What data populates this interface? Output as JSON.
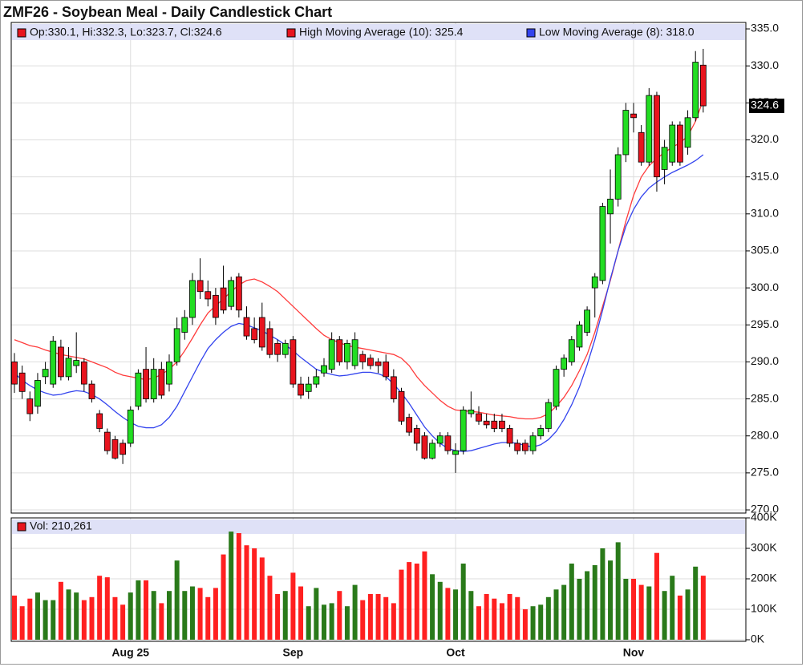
{
  "chart_data": [
    {
      "type": "candlestick",
      "title": "ZMF26 - Soybean Meal - Daily Candlestick Chart",
      "legend_text": "Op:330.1, Hi:332.3, Lo:323.7, Cl:324.6",
      "up_color": "#22dd22",
      "down_color": "#e8141e",
      "legend_color": "#e8141e",
      "open": [
        290,
        288.5,
        285,
        284,
        288,
        287,
        292,
        288,
        289.5,
        290,
        287,
        283,
        280.5,
        279.5,
        279,
        279,
        284,
        289,
        285,
        289,
        287,
        290,
        294,
        296,
        301,
        299.5,
        299,
        300,
        297.5,
        301.5,
        296,
        294.5,
        296,
        294.5,
        292.5,
        291,
        293,
        287,
        286,
        287,
        288.5,
        289,
        293,
        290,
        289.5,
        291,
        290.5,
        290,
        290,
        288,
        286,
        282.5,
        281,
        280,
        277,
        279,
        280,
        277.5,
        278,
        283,
        283,
        282,
        282,
        282,
        281,
        279,
        279,
        278,
        280,
        281,
        284,
        289,
        290,
        292,
        294,
        300,
        301,
        310,
        312,
        318,
        323.5,
        321,
        317,
        326,
        316,
        317,
        322,
        319,
        323,
        330.1
      ],
      "high": [
        291.2,
        289.5,
        286,
        288.5,
        290,
        293.5,
        293,
        292,
        294,
        290.5,
        287.5,
        283.5,
        281,
        280,
        279.5,
        284,
        289,
        292,
        290.5,
        290,
        291,
        296,
        297,
        302,
        304,
        301,
        300,
        303,
        301.5,
        302,
        297.5,
        296,
        298,
        295.5,
        293,
        293,
        293.5,
        288,
        288,
        289,
        290.5,
        294,
        293.5,
        293,
        294,
        291.5,
        291,
        290.5,
        291,
        289,
        286.5,
        283,
        281.5,
        280.5,
        279.5,
        280.5,
        280.5,
        279,
        284,
        286,
        284,
        283,
        283,
        283,
        281.5,
        279.5,
        279.5,
        280.5,
        281.5,
        285,
        289.5,
        291,
        293.5,
        295.5,
        297.5,
        302,
        311.5,
        316,
        319,
        325,
        325,
        322,
        327,
        326.5,
        320,
        322.5,
        322.5,
        324,
        332,
        332.3
      ],
      "low": [
        285.8,
        285,
        282,
        283,
        287,
        286.5,
        287.5,
        287.5,
        288.5,
        286,
        284.5,
        280.5,
        277.5,
        276.8,
        276.2,
        278.5,
        283.5,
        284.5,
        284.5,
        285,
        286,
        289.5,
        293,
        295,
        298.5,
        297.5,
        295,
        296.5,
        297,
        296,
        293,
        292.5,
        291.5,
        290.5,
        290,
        290.5,
        286.5,
        285,
        285,
        286.5,
        288,
        288.5,
        289.5,
        289,
        289,
        289,
        289,
        288.5,
        287.5,
        284.5,
        281.5,
        280,
        278,
        276.8,
        276.8,
        278.5,
        277.5,
        275,
        277.5,
        282.5,
        281.5,
        281,
        280.5,
        280.5,
        278.5,
        277.5,
        277.5,
        277.5,
        279.5,
        280.5,
        283.5,
        288,
        289.5,
        291.5,
        293.5,
        296,
        300.5,
        306,
        311,
        317,
        321,
        316.5,
        316.5,
        313,
        314,
        316.5,
        316.5,
        318,
        322.5,
        323.7
      ],
      "close": [
        287,
        286,
        283,
        287.5,
        289,
        292.8,
        288,
        290.5,
        290.2,
        287,
        285,
        281,
        278,
        277,
        277.5,
        283.5,
        288.5,
        285,
        289,
        285.5,
        290,
        294.5,
        296,
        301,
        299.5,
        298.5,
        296,
        297,
        301,
        297,
        293.5,
        293,
        292,
        291,
        291,
        292.5,
        287,
        285.5,
        287,
        288,
        289.5,
        293,
        290,
        292.5,
        293,
        290,
        289.5,
        289.5,
        288,
        285,
        282,
        280.5,
        279,
        277,
        279,
        280,
        278,
        278,
        283.5,
        283.5,
        282,
        281.5,
        281,
        281,
        279,
        278,
        278,
        280,
        281,
        284.5,
        289,
        290.5,
        293,
        295,
        297,
        301.5,
        311,
        312,
        318,
        324,
        323,
        317,
        326,
        315,
        319,
        322,
        317,
        323,
        330.5,
        324.6
      ],
      "series": [
        {
          "name": "High Moving Average (10): 325.4",
          "color": "#ff3b3b",
          "values": [
            293,
            292.6,
            292.2,
            292,
            291.6,
            291.3,
            291,
            290.8,
            290.6,
            290.4,
            290,
            289.6,
            289.2,
            288.6,
            288.2,
            288,
            287.8,
            287.6,
            287.8,
            288.3,
            289,
            290,
            291.5,
            293.2,
            295,
            296.6,
            297.6,
            298.5,
            299.5,
            300.4,
            301,
            301.2,
            300.8,
            300.2,
            299.5,
            298.5,
            297.5,
            296.5,
            295.5,
            294.5,
            293.6,
            293,
            292.6,
            292.2,
            292,
            291.8,
            291.6,
            291.4,
            291.2,
            291,
            290.5,
            289.5,
            288,
            286.8,
            285.8,
            284.8,
            284,
            283.5,
            283.4,
            283.3,
            283.2,
            283,
            282.8,
            282.7,
            282.6,
            282.4,
            282.3,
            282.3,
            282.5,
            283,
            284,
            285.2,
            286.8,
            288.8,
            291,
            294,
            297.5,
            301,
            305,
            309,
            312.5,
            315,
            316.5,
            317.5,
            318.3,
            319,
            319.6,
            320.5,
            322.5,
            325.4
          ]
        },
        {
          "name": "Low Moving Average (8): 318.0",
          "color": "#3344ee",
          "values": [
            288.5,
            287.5,
            286.8,
            286.2,
            285.8,
            285.5,
            285.6,
            285.9,
            286.1,
            286,
            285.6,
            285,
            284.2,
            283.3,
            282.5,
            281.8,
            281.3,
            281.1,
            281.1,
            281.5,
            282.5,
            284,
            286,
            288,
            290,
            291.8,
            293,
            294,
            294.8,
            295.2,
            295,
            294.6,
            294.2,
            293.6,
            293,
            292.3,
            291.5,
            290.6,
            289.8,
            289,
            288.6,
            288.3,
            288.1,
            288.2,
            288.4,
            288.6,
            288.6,
            288.4,
            288,
            287,
            285.8,
            284.4,
            282.8,
            281.2,
            280,
            279,
            278.3,
            278,
            277.9,
            278,
            278.3,
            278.6,
            278.9,
            279.1,
            279.1,
            279,
            278.7,
            278.5,
            278.8,
            279.5,
            280.6,
            282.2,
            284.2,
            286.6,
            289.6,
            293,
            297,
            301.2,
            305,
            308.3,
            310.6,
            312.3,
            313.5,
            314.3,
            315,
            315.6,
            316.1,
            316.6,
            317.2,
            318
          ]
        }
      ],
      "last_price": {
        "value": 324.6,
        "label": "324.6"
      },
      "ylim": [
        269.57,
        335.87
      ],
      "yticks": [
        {
          "value": 270,
          "label": "270.0"
        },
        {
          "value": 275,
          "label": "275.0"
        },
        {
          "value": 280,
          "label": "280.0"
        },
        {
          "value": 285,
          "label": "285.0"
        },
        {
          "value": 290,
          "label": "290.0"
        },
        {
          "value": 295,
          "label": "295.0"
        },
        {
          "value": 300,
          "label": "300.0"
        },
        {
          "value": 305,
          "label": "305.0"
        },
        {
          "value": 310,
          "label": "310.0"
        },
        {
          "value": 315,
          "label": "315.0"
        },
        {
          "value": 320,
          "label": "320.0"
        },
        {
          "value": 325,
          "label": "325.0"
        },
        {
          "value": 330,
          "label": "330.0"
        },
        {
          "value": 335,
          "label": "335.0"
        }
      ],
      "grid": true
    },
    {
      "type": "bar",
      "legend_text": "Vol: 210,261",
      "legend_color": "#e8141e",
      "up_color": "#2a7a1a",
      "down_color": "#ff2020",
      "categories": [
        null,
        null,
        null,
        null,
        null,
        null,
        null,
        null,
        null,
        null,
        null,
        null,
        null,
        null,
        null,
        "Aug 25",
        null,
        null,
        null,
        null,
        null,
        null,
        null,
        null,
        null,
        null,
        null,
        null,
        null,
        null,
        null,
        null,
        null,
        null,
        null,
        null,
        "Sep",
        null,
        null,
        null,
        null,
        null,
        null,
        null,
        null,
        null,
        null,
        null,
        null,
        null,
        null,
        null,
        null,
        null,
        null,
        null,
        null,
        "Oct",
        null,
        null,
        null,
        null,
        null,
        null,
        null,
        null,
        null,
        null,
        null,
        null,
        null,
        null,
        null,
        null,
        null,
        null,
        null,
        null,
        null,
        null,
        "Nov",
        null,
        null,
        null,
        null,
        null,
        null,
        null,
        null,
        null
      ],
      "values": [
        145000,
        110000,
        135000,
        155000,
        130000,
        130000,
        190000,
        165000,
        155000,
        130000,
        140000,
        210000,
        205000,
        140000,
        115000,
        155000,
        195000,
        195000,
        160000,
        120000,
        160000,
        260000,
        160000,
        175000,
        170000,
        140000,
        170000,
        280000,
        355000,
        350000,
        310000,
        300000,
        270000,
        210000,
        150000,
        160000,
        220000,
        175000,
        110000,
        170000,
        115000,
        120000,
        160000,
        110000,
        180000,
        130000,
        150000,
        150000,
        140000,
        120000,
        230000,
        255000,
        250000,
        290000,
        215000,
        190000,
        170000,
        165000,
        250000,
        160000,
        110000,
        150000,
        135000,
        120000,
        150000,
        140000,
        100000,
        110000,
        115000,
        140000,
        165000,
        180000,
        250000,
        200000,
        225000,
        245000,
        300000,
        260000,
        320000,
        200000,
        200000,
        180000,
        175000,
        285000,
        160000,
        210000,
        145000,
        165000,
        240000,
        210261
      ],
      "ylim": [
        0,
        400000
      ],
      "yticks": [
        {
          "value": 0,
          "label": "0K"
        },
        {
          "value": 100000,
          "label": "100K"
        },
        {
          "value": 200000,
          "label": "200K"
        },
        {
          "value": 300000,
          "label": "300K"
        },
        {
          "value": 400000,
          "label": "400K"
        }
      ],
      "grid": true
    }
  ]
}
